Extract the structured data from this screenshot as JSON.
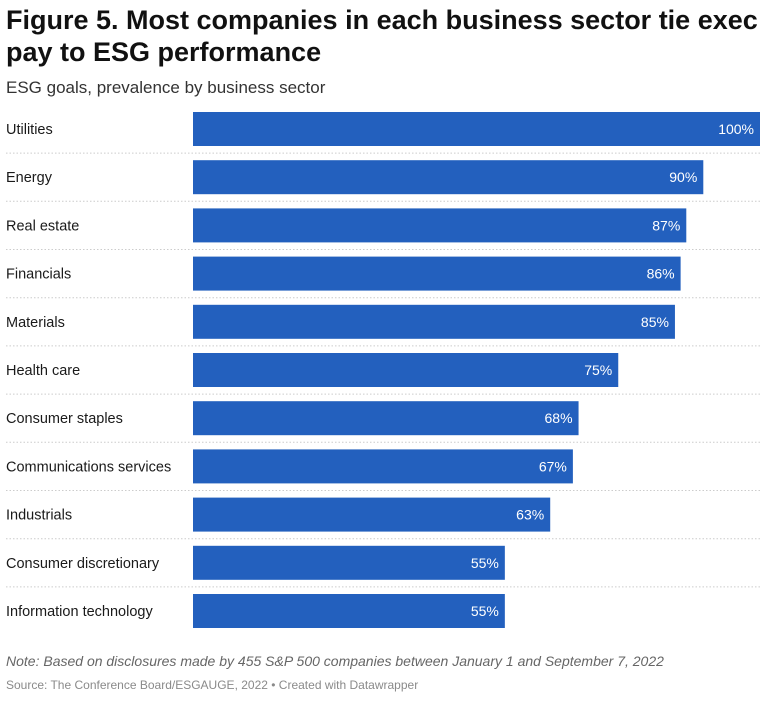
{
  "header": {
    "title": "Figure 5. Most companies in each business sector tie exec pay to ESG performance",
    "subtitle": "ESG goals, prevalence by business sector"
  },
  "footer": {
    "note": "Note: Based on disclosures made by 455 S&P 500 companies between January 1 and September 7, 2022",
    "source": "Source: The Conference Board/ESGAUGE, 2022 • Created with Datawrapper"
  },
  "colors": {
    "bar": "#2360be",
    "bar_label": "#ffffff",
    "row_divider": "#cccccc"
  },
  "chart_data": {
    "type": "bar",
    "orientation": "horizontal",
    "title": "Figure 5. Most companies in each business sector tie exec pay to ESG performance",
    "subtitle": "ESG goals, prevalence by business sector",
    "categories": [
      "Utilities",
      "Energy",
      "Real estate",
      "Financials",
      "Materials",
      "Health care",
      "Consumer staples",
      "Communications services",
      "Industrials",
      "Consumer discretionary",
      "Information technology"
    ],
    "values": [
      100,
      90,
      87,
      86,
      85,
      75,
      68,
      67,
      63,
      55,
      55
    ],
    "value_labels": [
      "100%",
      "90%",
      "87%",
      "86%",
      "85%",
      "75%",
      "68%",
      "67%",
      "63%",
      "55%",
      "55%"
    ],
    "xlim": [
      0,
      100
    ],
    "grid": false,
    "legend": "none"
  }
}
